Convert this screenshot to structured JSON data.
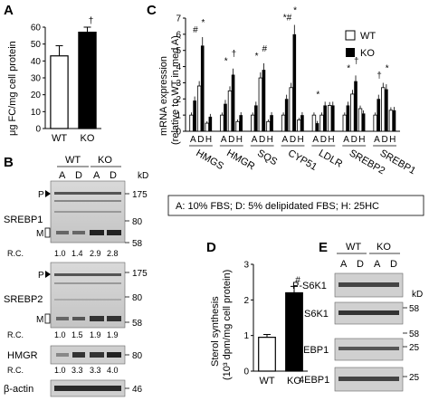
{
  "panels": {
    "A": {
      "letter": "A",
      "chart_data": {
        "type": "bar",
        "categories": [
          "WT",
          "KO"
        ],
        "values": [
          43,
          57
        ],
        "errors": [
          6,
          3
        ],
        "fills": [
          "#ffffff",
          "#000000"
        ],
        "ylabel": "μg FC/mg cell protein",
        "ylim": [
          0,
          60
        ],
        "yticks": [
          "0",
          "10",
          "20",
          "30",
          "40",
          "50",
          "60"
        ],
        "annotation": "†"
      }
    },
    "B": {
      "letter": "B",
      "kd": "kD",
      "wt": "WT",
      "ko": "KO",
      "lanes": [
        "A",
        "D",
        "A",
        "D"
      ],
      "p": "P",
      "m": "M",
      "blots": [
        {
          "name": "SREBP1",
          "marks": [
            "175",
            "80",
            "58"
          ],
          "rc": [
            "R.C.",
            "1.0",
            "1.4",
            "2.9",
            "2.8"
          ]
        },
        {
          "name": "SREBP2",
          "marks": [
            "175",
            "80",
            "58"
          ],
          "rc": [
            "R.C.",
            "1.0",
            "1.5",
            "1.9",
            "1.9"
          ]
        },
        {
          "name": "HMGR",
          "marks": [
            "80"
          ],
          "rc": [
            "R.C.",
            "1.0",
            "3.3",
            "3.3",
            "4.0"
          ]
        },
        {
          "name": "β-actin",
          "marks": [
            "46"
          ],
          "rc": []
        }
      ]
    },
    "C": {
      "letter": "C",
      "chart_data": {
        "type": "bar",
        "ylabel": "mRNA expression",
        "ylabel2": "(relative to WT in med A)",
        "yticks": [
          "0",
          "1",
          "2",
          "3",
          "4",
          "5",
          "6",
          "7"
        ],
        "ylim": [
          0,
          7
        ],
        "legend": [
          "WT",
          "KO"
        ],
        "conditions": [
          "A",
          "D",
          "H"
        ],
        "genes": [
          {
            "name": "HMGS",
            "WT": [
              1.0,
              2.8,
              0.5
            ],
            "KO": [
              1.9,
              5.3,
              0.9
            ],
            "marks": [
              "#",
              "*"
            ]
          },
          {
            "name": "HMGR",
            "WT": [
              1.0,
              2.5,
              0.6
            ],
            "KO": [
              1.7,
              3.5,
              1.0
            ],
            "marks": [
              "*",
              "†"
            ]
          },
          {
            "name": "SQS",
            "WT": [
              1.0,
              3.3,
              0.6
            ],
            "KO": [
              1.6,
              3.8,
              1.0
            ],
            "marks": [
              "*",
              "#"
            ]
          },
          {
            "name": "CYP51",
            "WT": [
              1.0,
              2.7,
              0.7
            ],
            "KO": [
              2.0,
              6.0,
              1.0
            ],
            "marks": [
              "*#",
              "*"
            ]
          },
          {
            "name": "LDLR",
            "WT": [
              1.0,
              1.0,
              1.6
            ],
            "KO": [
              0.5,
              1.6,
              1.6
            ],
            "marks": [
              "*"
            ]
          },
          {
            "name": "SREBP2",
            "WT": [
              1.0,
              2.3,
              1.4
            ],
            "KO": [
              1.6,
              3.1,
              1.1
            ],
            "marks": [
              "*",
              "†"
            ]
          },
          {
            "name": "SREBP1",
            "WT": [
              1.0,
              2.7,
              1.3
            ],
            "KO": [
              2.0,
              2.6,
              1.3
            ],
            "marks": [
              "†",
              "*"
            ]
          }
        ],
        "footnote": "A: 10% FBS; D: 5% delipidated FBS; H: 25HC"
      }
    },
    "D": {
      "letter": "D",
      "chart_data": {
        "type": "bar",
        "categories": [
          "WT",
          "KO"
        ],
        "values": [
          0.95,
          2.2
        ],
        "errors": [
          0.08,
          0.18
        ],
        "fills": [
          "#ffffff",
          "#000000"
        ],
        "ylabel": "Sterol synthesis",
        "ylabel2": "(10³ dpm/mg cell protein)",
        "ylim": [
          0,
          3
        ],
        "yticks": [
          "0",
          "1",
          "2",
          "3"
        ],
        "annotation": "#"
      }
    },
    "E": {
      "letter": "E",
      "kd": "kD",
      "wt": "WT",
      "ko": "KO",
      "lanes": [
        "A",
        "D",
        "A",
        "D"
      ],
      "blots": [
        {
          "name": "P-S6K1",
          "marks": [
            "58"
          ]
        },
        {
          "name": "S6K1",
          "marks": [
            "58"
          ]
        },
        {
          "name": "P-4EBP1",
          "marks": [
            "25"
          ]
        },
        {
          "name": "4EBP1",
          "marks": [
            "25"
          ]
        }
      ]
    }
  }
}
